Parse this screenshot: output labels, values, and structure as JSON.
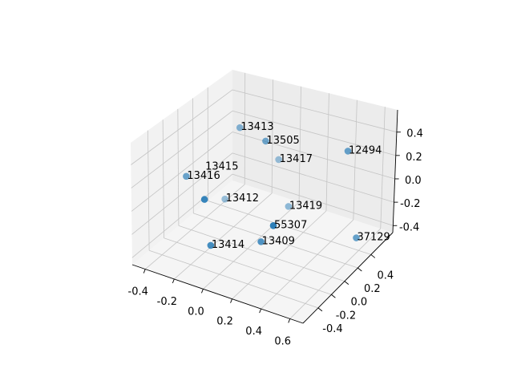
{
  "chart_data": {
    "type": "scatter",
    "projection": "3d",
    "title": "",
    "xlabel": "",
    "ylabel": "",
    "zlabel": "",
    "xlim": [
      -0.49,
      0.69
    ],
    "ylim": [
      -0.63,
      0.73
    ],
    "zlim": [
      -0.46,
      0.59
    ],
    "xticks": [
      "-0.4",
      "-0.2",
      "0.0",
      "0.2",
      "0.4",
      "0.6"
    ],
    "yticks": [
      "-0.4",
      "-0.2",
      "0.0",
      "0.2",
      "0.4"
    ],
    "zticks": [
      "-0.4",
      "-0.2",
      "0.0",
      "0.2",
      "0.4"
    ],
    "grid": true,
    "marker_color": "#1f77b4",
    "depth_shade": true,
    "points": [
      {
        "label": "13413",
        "x": -0.22,
        "y": 0.32,
        "z": 0.36
      },
      {
        "label": "13505",
        "x": 0.03,
        "y": 0.19,
        "z": 0.4
      },
      {
        "label": "13417",
        "x": -0.05,
        "y": 0.53,
        "z": 0.02
      },
      {
        "label": "12494",
        "x": 0.61,
        "y": 0.19,
        "z": 0.52
      },
      {
        "label": "13416",
        "x": -0.46,
        "y": 0.05,
        "z": -0.03
      },
      {
        "label": "13412",
        "x": -0.4,
        "y": 0.46,
        "z": -0.44
      },
      {
        "label": "13415",
        "x": -0.12,
        "y": -0.36,
        "z": 0.12
      },
      {
        "label": "13419",
        "x": 0.06,
        "y": 0.46,
        "z": -0.32
      },
      {
        "label": "55307",
        "x": 0.36,
        "y": -0.36,
        "z": 0.09
      },
      {
        "label": "13414",
        "x": -0.15,
        "y": -0.22,
        "z": -0.37
      },
      {
        "label": "13409",
        "x": 0.14,
        "y": -0.09,
        "z": -0.29
      },
      {
        "label": "37129",
        "x": 0.68,
        "y": 0.19,
        "z": -0.2
      }
    ]
  }
}
